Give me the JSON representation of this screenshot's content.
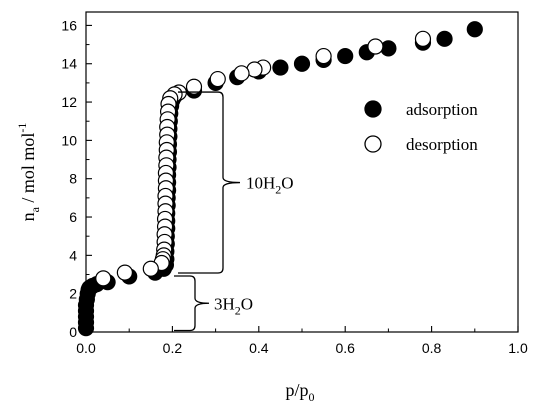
{
  "chart_data": {
    "type": "scatter",
    "title": "",
    "xlabel": "p/p",
    "xlabel_sub": "0",
    "ylabel": "n",
    "ylabel_sub": "a",
    "ylabel_rest": " / mol mol",
    "ylabel_sup": "-1",
    "xlim": [
      0.0,
      1.0
    ],
    "ylim": [
      0,
      16.7
    ],
    "xticks": [
      "0.0",
      "0.2",
      "0.4",
      "0.6",
      "0.8",
      "1.0"
    ],
    "xtick_values": [
      0.0,
      0.2,
      0.4,
      0.6,
      0.8,
      1.0
    ],
    "yticks": [
      "0",
      "2",
      "4",
      "6",
      "8",
      "10",
      "12",
      "14",
      "16"
    ],
    "ytick_values": [
      0,
      2,
      4,
      6,
      8,
      10,
      12,
      14,
      16
    ],
    "legend_position": "right",
    "series": [
      {
        "name": "adsorption",
        "marker": "filled-circle",
        "color": "#000000",
        "x": [
          0.0,
          0.0,
          0.0,
          0.0,
          0.0,
          0.002,
          0.004,
          0.006,
          0.008,
          0.015,
          0.025,
          0.05,
          0.1,
          0.16,
          0.18,
          0.185,
          0.186,
          0.186,
          0.187,
          0.187,
          0.188,
          0.188,
          0.188,
          0.189,
          0.189,
          0.19,
          0.19,
          0.19,
          0.191,
          0.191,
          0.192,
          0.192,
          0.193,
          0.193,
          0.194,
          0.195,
          0.197,
          0.2,
          0.205,
          0.25,
          0.3,
          0.35,
          0.4,
          0.45,
          0.5,
          0.55,
          0.6,
          0.65,
          0.7,
          0.78,
          0.83,
          0.9
        ],
        "y": [
          0.2,
          0.5,
          0.8,
          1.1,
          1.4,
          1.7,
          2.0,
          2.2,
          2.3,
          2.4,
          2.5,
          2.6,
          2.9,
          3.1,
          3.3,
          3.5,
          3.8,
          4.2,
          4.6,
          5.0,
          5.4,
          5.8,
          6.2,
          6.6,
          7.0,
          7.4,
          7.8,
          8.2,
          8.6,
          9.0,
          9.4,
          9.8,
          10.2,
          10.6,
          11.0,
          11.4,
          11.8,
          12.1,
          12.3,
          12.6,
          13.0,
          13.3,
          13.6,
          13.8,
          14.0,
          14.2,
          14.4,
          14.6,
          14.8,
          15.1,
          15.3,
          15.8
        ]
      },
      {
        "name": "desorption",
        "marker": "open-circle",
        "color": "#000000",
        "x": [
          0.78,
          0.67,
          0.55,
          0.41,
          0.39,
          0.36,
          0.305,
          0.25,
          0.215,
          0.205,
          0.195,
          0.191,
          0.19,
          0.189,
          0.188,
          0.188,
          0.187,
          0.187,
          0.186,
          0.186,
          0.185,
          0.185,
          0.185,
          0.184,
          0.184,
          0.184,
          0.183,
          0.183,
          0.182,
          0.182,
          0.181,
          0.18,
          0.178,
          0.175,
          0.15,
          0.09,
          0.04
        ],
        "y": [
          15.3,
          14.9,
          14.4,
          13.8,
          13.7,
          13.5,
          13.2,
          12.8,
          12.5,
          12.4,
          12.2,
          11.9,
          11.5,
          11.1,
          10.7,
          10.3,
          9.9,
          9.5,
          9.1,
          8.7,
          8.3,
          7.9,
          7.5,
          7.1,
          6.7,
          6.3,
          5.9,
          5.5,
          5.1,
          4.7,
          4.3,
          4.0,
          3.8,
          3.6,
          3.3,
          3.1,
          2.8
        ]
      }
    ],
    "annotations": [
      {
        "id": "a10",
        "text": "10H",
        "sub": "2",
        "rest": "O",
        "y_from": 3.0,
        "y_to": 12.6
      },
      {
        "id": "a3",
        "text": "3H",
        "sub": "2",
        "rest": "O",
        "y_from": 0.0,
        "y_to": 3.0
      }
    ]
  }
}
